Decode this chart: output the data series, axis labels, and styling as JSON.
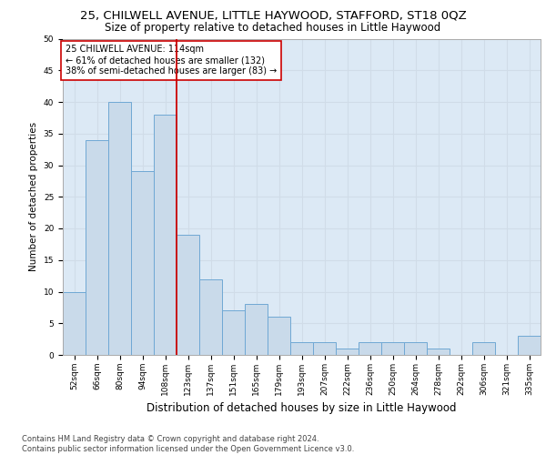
{
  "title1": "25, CHILWELL AVENUE, LITTLE HAYWOOD, STAFFORD, ST18 0QZ",
  "title2": "Size of property relative to detached houses in Little Haywood",
  "xlabel": "Distribution of detached houses by size in Little Haywood",
  "ylabel": "Number of detached properties",
  "categories": [
    "52sqm",
    "66sqm",
    "80sqm",
    "94sqm",
    "108sqm",
    "123sqm",
    "137sqm",
    "151sqm",
    "165sqm",
    "179sqm",
    "193sqm",
    "207sqm",
    "222sqm",
    "236sqm",
    "250sqm",
    "264sqm",
    "278sqm",
    "292sqm",
    "306sqm",
    "321sqm",
    "335sqm"
  ],
  "values": [
    10,
    34,
    40,
    29,
    38,
    19,
    12,
    7,
    8,
    6,
    2,
    2,
    1,
    2,
    2,
    2,
    1,
    0,
    2,
    0,
    3
  ],
  "bar_color": "#c9daea",
  "bar_edge_color": "#6fa8d4",
  "bar_width": 1.0,
  "vline_x": 4.5,
  "vline_color": "#cc0000",
  "annotation_text": "25 CHILWELL AVENUE: 114sqm\n← 61% of detached houses are smaller (132)\n38% of semi-detached houses are larger (83) →",
  "annotation_box_color": "#ffffff",
  "annotation_box_edge": "#cc0000",
  "ylim": [
    0,
    50
  ],
  "yticks": [
    0,
    5,
    10,
    15,
    20,
    25,
    30,
    35,
    40,
    45,
    50
  ],
  "grid_color": "#d0dce8",
  "plot_bg_color": "#dce9f5",
  "footer": "Contains HM Land Registry data © Crown copyright and database right 2024.\nContains public sector information licensed under the Open Government Licence v3.0.",
  "title1_fontsize": 9.5,
  "title2_fontsize": 8.5,
  "xlabel_fontsize": 8.5,
  "ylabel_fontsize": 7.5,
  "tick_fontsize": 6.5,
  "annotation_fontsize": 7.0,
  "footer_fontsize": 6.0
}
